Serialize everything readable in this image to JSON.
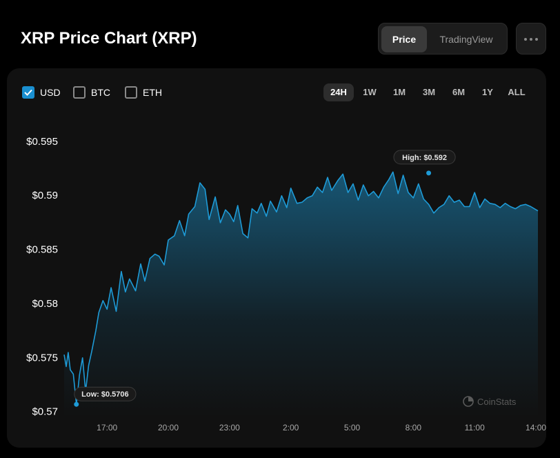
{
  "header": {
    "title": "XRP Price Chart (XRP)",
    "tabs": [
      {
        "label": "Price",
        "active": true
      },
      {
        "label": "TradingView",
        "active": false
      }
    ],
    "more_icon": "ellipsis-icon"
  },
  "currencies": [
    {
      "label": "USD",
      "checked": true
    },
    {
      "label": "BTC",
      "checked": false
    },
    {
      "label": "ETH",
      "checked": false
    }
  ],
  "ranges": [
    {
      "label": "24H",
      "active": true
    },
    {
      "label": "1W",
      "active": false
    },
    {
      "label": "1M",
      "active": false
    },
    {
      "label": "3M",
      "active": false
    },
    {
      "label": "6M",
      "active": false
    },
    {
      "label": "1Y",
      "active": false
    },
    {
      "label": "ALL",
      "active": false
    }
  ],
  "colors": {
    "line": "#1e9bd7",
    "background": "#111111",
    "accent": "#1a8fd0"
  },
  "chart_data": {
    "type": "area",
    "series": [
      {
        "name": "",
        "x": [
          14.9,
          15.0,
          15.1,
          15.2,
          15.35,
          15.5,
          15.65,
          15.8,
          15.95,
          16.1,
          16.25,
          16.45,
          16.6,
          16.8,
          17.0,
          17.2,
          17.45,
          17.7,
          17.9,
          18.1,
          18.4,
          18.65,
          18.85,
          19.1,
          19.35,
          19.55,
          19.8,
          20.0,
          20.3,
          20.55,
          20.8,
          21.0,
          21.3,
          21.55,
          21.8,
          22.0,
          22.3,
          22.55,
          22.8,
          23.0,
          23.2,
          23.4,
          23.65,
          23.9,
          24.1,
          24.35,
          24.55,
          24.8,
          25.0,
          25.3,
          25.55,
          25.8,
          26.0,
          26.3,
          26.55,
          26.8,
          27.05,
          27.3,
          27.55,
          27.8,
          28.0,
          28.3,
          28.55,
          28.8,
          29.05,
          29.3,
          29.55,
          29.8,
          30.05,
          30.3,
          30.55,
          30.8,
          31.0,
          31.25,
          31.5,
          31.75,
          32.0,
          32.25,
          32.5,
          32.75,
          33.0,
          33.25,
          33.5,
          33.75,
          34.0,
          34.25,
          34.5,
          34.75,
          35.0,
          35.25,
          35.5,
          35.75,
          36.0,
          36.25,
          36.5,
          36.75,
          37.0,
          37.25,
          37.5,
          37.75,
          38.1
        ],
        "values": [
          0.5752,
          0.5741,
          0.5754,
          0.5738,
          0.5734,
          0.5706,
          0.5733,
          0.5749,
          0.5718,
          0.5742,
          0.5755,
          0.5774,
          0.5791,
          0.5802,
          0.5794,
          0.5814,
          0.5792,
          0.5829,
          0.581,
          0.5822,
          0.5811,
          0.5836,
          0.582,
          0.5841,
          0.5845,
          0.5843,
          0.5835,
          0.5858,
          0.5862,
          0.5876,
          0.5862,
          0.5882,
          0.5889,
          0.5911,
          0.5905,
          0.5877,
          0.5898,
          0.5874,
          0.5886,
          0.5882,
          0.5875,
          0.589,
          0.5864,
          0.586,
          0.5887,
          0.5883,
          0.5892,
          0.588,
          0.5894,
          0.5884,
          0.5899,
          0.5888,
          0.5906,
          0.5892,
          0.5893,
          0.5897,
          0.5899,
          0.5907,
          0.5902,
          0.5916,
          0.5904,
          0.5913,
          0.5919,
          0.5902,
          0.591,
          0.5895,
          0.5909,
          0.5899,
          0.5903,
          0.5897,
          0.5907,
          0.5914,
          0.5921,
          0.5901,
          0.5918,
          0.5902,
          0.5897,
          0.591,
          0.5896,
          0.5891,
          0.5883,
          0.5888,
          0.5891,
          0.5899,
          0.5893,
          0.5895,
          0.5889,
          0.5889,
          0.5902,
          0.5888,
          0.5896,
          0.5892,
          0.5891,
          0.5888,
          0.5892,
          0.5889,
          0.5887,
          0.589,
          0.5891,
          0.5889,
          0.5885
        ]
      }
    ],
    "x_ticks": [
      {
        "v": 17,
        "label": "17:00"
      },
      {
        "v": 20,
        "label": "20:00"
      },
      {
        "v": 23,
        "label": "23:00"
      },
      {
        "v": 26,
        "label": "2:00"
      },
      {
        "v": 29,
        "label": "5:00"
      },
      {
        "v": 32,
        "label": "8:00"
      },
      {
        "v": 35,
        "label": "11:00"
      },
      {
        "v": 38,
        "label": "14:00"
      }
    ],
    "y_ticks": [
      {
        "v": 0.57,
        "label": "$0.57"
      },
      {
        "v": 0.575,
        "label": "$0.575"
      },
      {
        "v": 0.58,
        "label": "$0.58"
      },
      {
        "v": 0.585,
        "label": "$0.585"
      },
      {
        "v": 0.59,
        "label": "$0.59"
      },
      {
        "v": 0.595,
        "label": "$0.595"
      }
    ],
    "xlim": [
      14.9,
      38.1
    ],
    "ylim": [
      0.5694,
      0.5978
    ],
    "high": {
      "x": 32.75,
      "y": 0.592,
      "label": "High: $0.592"
    },
    "low": {
      "x": 15.5,
      "y": 0.5706,
      "label": "Low: $0.5706"
    },
    "watermark": "CoinStats",
    "grid": false
  }
}
